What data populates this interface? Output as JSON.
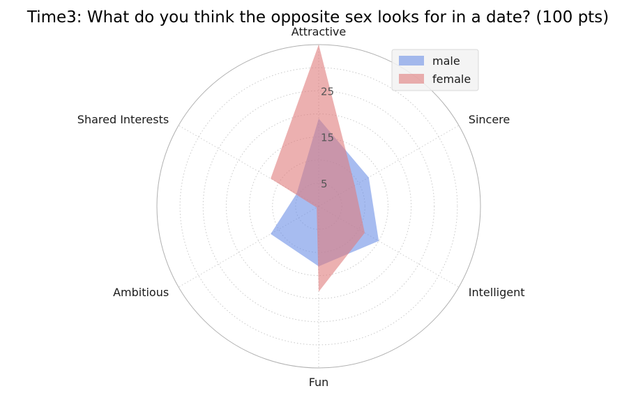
{
  "chart_data": {
    "type": "radar",
    "title": "Time3: What do you think the opposite sex looks for in a date? (100 pts)",
    "categories": [
      "Attractive",
      "Sincere",
      "Intelligent",
      "Fun",
      "Ambitious",
      "Shared Interests"
    ],
    "radial_ticks": [
      "5",
      "15",
      "25"
    ],
    "radial_tick_values": [
      5,
      15,
      25
    ],
    "rmax": 35,
    "grid": true,
    "legend_position": "top-right",
    "series": [
      {
        "name": "male",
        "values": [
          19.0,
          12.5,
          15.0,
          13.0,
          12.0,
          5.5
        ],
        "color": "#6d8fe6"
      },
      {
        "name": "female",
        "values": [
          35.0,
          9.0,
          11.5,
          18.5,
          0.5,
          12.0
        ],
        "color": "#e07b7b"
      }
    ]
  }
}
